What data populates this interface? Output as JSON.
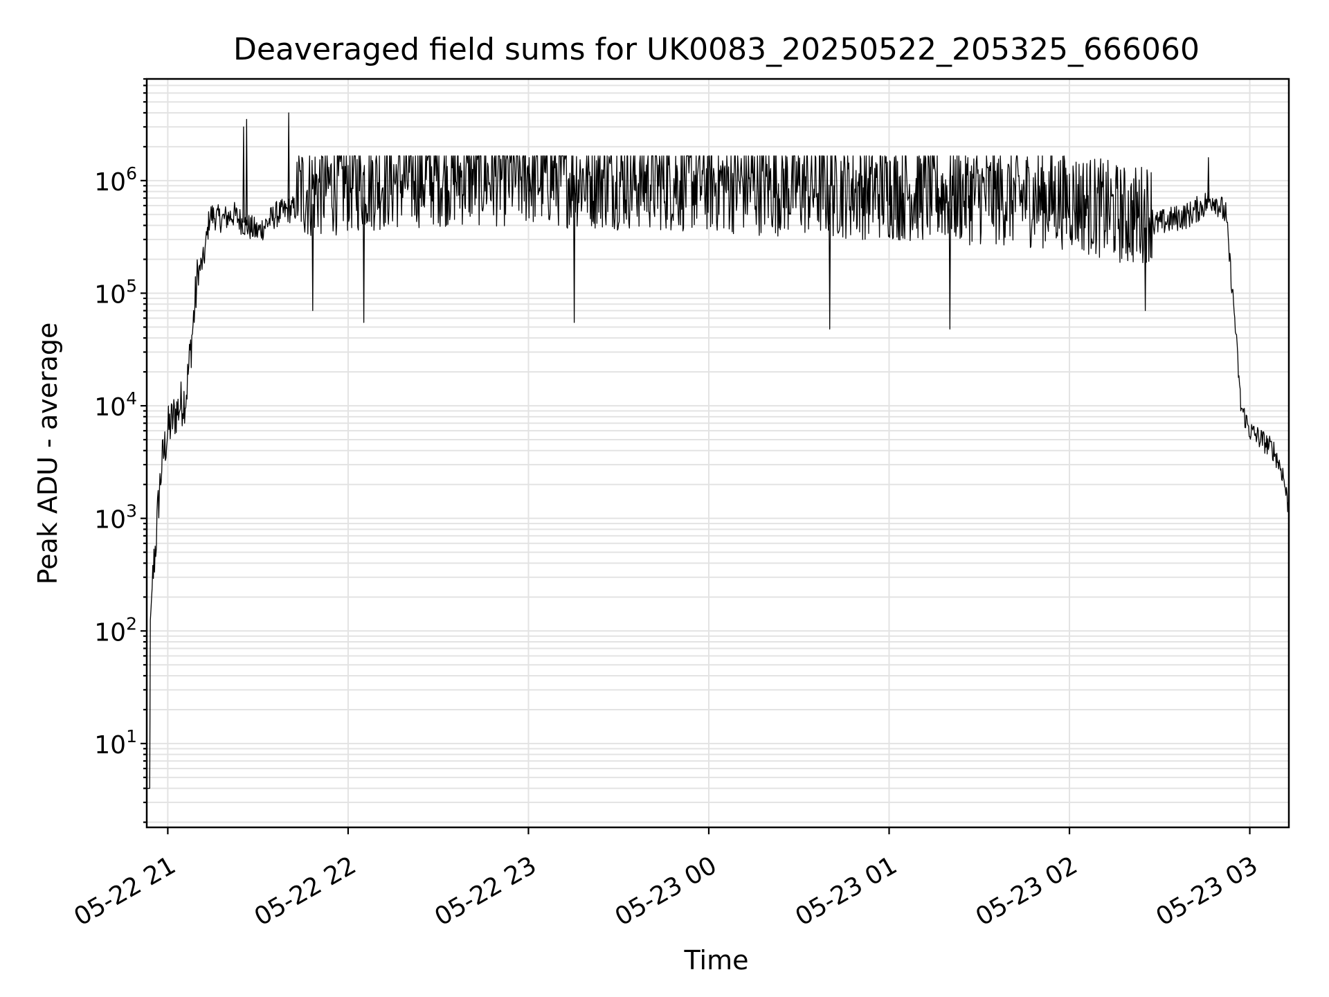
{
  "chart_data": {
    "type": "line",
    "title": "Deaveraged field sums for UK0083_20250522_205325_666060",
    "xlabel": "Time",
    "ylabel": "Peak ADU - average",
    "x_start": "2025-05-22 20:53",
    "x_end": "2025-05-23 03:13",
    "xlim": [
      "2025-05-22 20:53",
      "2025-05-23 03:13"
    ],
    "ylim": [
      1.8,
      8000000
    ],
    "yscale": "log",
    "grid": true,
    "x_ticks": [
      {
        "time": "2025-05-22 21:00",
        "label": "05-22 21"
      },
      {
        "time": "2025-05-22 22:00",
        "label": "05-22 22"
      },
      {
        "time": "2025-05-22 23:00",
        "label": "05-22 23"
      },
      {
        "time": "2025-05-23 00:00",
        "label": "05-23 00"
      },
      {
        "time": "2025-05-23 01:00",
        "label": "05-23 01"
      },
      {
        "time": "2025-05-23 02:00",
        "label": "05-23 02"
      },
      {
        "time": "2025-05-23 03:00",
        "label": "05-23 03"
      }
    ],
    "y_ticks": [
      {
        "value": 10,
        "base": "10",
        "exp": "1"
      },
      {
        "value": 100,
        "base": "10",
        "exp": "2"
      },
      {
        "value": 1000,
        "base": "10",
        "exp": "3"
      },
      {
        "value": 10000,
        "base": "10",
        "exp": "4"
      },
      {
        "value": 100000,
        "base": "10",
        "exp": "5"
      },
      {
        "value": 1000000,
        "base": "10",
        "exp": "6"
      }
    ],
    "series": [
      {
        "color": "#000000",
        "points": [
          [
            "2025-05-22 20:53",
            4
          ],
          [
            "2025-05-22 20:54",
            4
          ],
          [
            "2025-05-22 20:54",
            100
          ],
          [
            "2025-05-22 20:55",
            300
          ],
          [
            "2025-05-22 20:56",
            600
          ],
          [
            "2025-05-22 20:57",
            1500
          ],
          [
            "2025-05-22 20:58",
            3000
          ],
          [
            "2025-05-22 21:00",
            6000
          ],
          [
            "2025-05-22 21:02",
            8000
          ],
          [
            "2025-05-22 21:04",
            10000
          ],
          [
            "2025-05-22 21:06",
            12000
          ],
          [
            "2025-05-22 21:08",
            40000
          ],
          [
            "2025-05-22 21:10",
            150000
          ],
          [
            "2025-05-22 21:12",
            200000
          ],
          [
            "2025-05-22 21:14",
            500000
          ],
          [
            "2025-05-22 21:18",
            450000
          ],
          [
            "2025-05-22 21:22",
            500000
          ],
          [
            "2025-05-22 21:26",
            400000
          ],
          [
            "2025-05-22 21:30",
            350000
          ],
          [
            "2025-05-22 21:36",
            500000
          ],
          [
            "2025-05-22 21:45",
            600000
          ],
          [
            "2025-05-22 22:00",
            700000
          ],
          [
            "2025-05-22 22:30",
            800000
          ],
          [
            "2025-05-22 23:00",
            800000
          ],
          [
            "2025-05-23 00:00",
            700000
          ],
          [
            "2025-05-23 01:00",
            600000
          ],
          [
            "2025-05-23 02:00",
            500000
          ],
          [
            "2025-05-23 02:20",
            350000
          ],
          [
            "2025-05-23 02:40",
            500000
          ],
          [
            "2025-05-23 02:48",
            700000
          ],
          [
            "2025-05-23 02:52",
            500000
          ],
          [
            "2025-05-23 02:55",
            60000
          ],
          [
            "2025-05-23 02:57",
            10000
          ],
          [
            "2025-05-23 03:00",
            6000
          ],
          [
            "2025-05-23 03:04",
            5000
          ],
          [
            "2025-05-23 03:08",
            4000
          ],
          [
            "2025-05-23 03:11",
            2500
          ],
          [
            "2025-05-23 03:13",
            1200
          ]
        ],
        "spikes": [
          [
            "2025-05-22 21:25",
            3000000
          ],
          [
            "2025-05-22 21:26",
            3500000
          ],
          [
            "2025-05-22 21:40",
            4000000
          ],
          [
            "2025-05-22 23:00",
            1600000
          ],
          [
            "2025-05-23 01:00",
            1500000
          ],
          [
            "2025-05-23 02:46",
            1600000
          ]
        ],
        "dips": [
          [
            "2025-05-22 21:48",
            70000
          ],
          [
            "2025-05-22 22:05",
            55000
          ],
          [
            "2025-05-22 23:15",
            55000
          ],
          [
            "2025-05-23 00:40",
            48000
          ],
          [
            "2025-05-23 01:20",
            48000
          ],
          [
            "2025-05-23 02:25",
            70000
          ]
        ]
      }
    ]
  }
}
